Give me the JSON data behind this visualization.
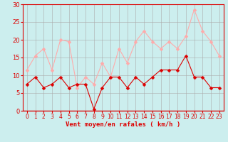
{
  "x": [
    0,
    1,
    2,
    3,
    4,
    5,
    6,
    7,
    8,
    9,
    10,
    11,
    12,
    13,
    14,
    15,
    16,
    17,
    18,
    19,
    20,
    21,
    22,
    23
  ],
  "vent_moyen": [
    7.5,
    9.5,
    6.5,
    7.5,
    9.5,
    6.5,
    7.5,
    7.5,
    0.5,
    6.5,
    9.5,
    9.5,
    6.5,
    9.5,
    7.5,
    9.5,
    11.5,
    11.5,
    11.5,
    15.5,
    9.5,
    9.5,
    6.5,
    6.5
  ],
  "rafales": [
    11.5,
    15.5,
    17.5,
    11.5,
    20.0,
    19.5,
    6.5,
    9.5,
    7.5,
    13.5,
    9.5,
    17.5,
    13.5,
    19.5,
    22.5,
    19.5,
    17.5,
    19.5,
    17.5,
    21.0,
    28.5,
    22.5,
    19.5,
    15.5
  ],
  "color_moyen": "#dd0000",
  "color_rafales": "#ffaaaa",
  "background": "#cceeee",
  "grid_color": "#aaaaaa",
  "xlabel": "Vent moyen/en rafales ( km/h )",
  "xlabel_color": "#dd0000",
  "tick_color": "#dd0000",
  "spine_color": "#dd0000",
  "ylim": [
    0,
    30
  ],
  "yticks": [
    0,
    5,
    10,
    15,
    20,
    25,
    30
  ],
  "ytick_labels": [
    "0",
    "5",
    "10",
    "15",
    "20",
    "25",
    "30"
  ],
  "xticks": [
    0,
    1,
    2,
    3,
    4,
    5,
    6,
    7,
    8,
    9,
    10,
    11,
    12,
    13,
    14,
    15,
    16,
    17,
    18,
    19,
    20,
    21,
    22,
    23
  ]
}
